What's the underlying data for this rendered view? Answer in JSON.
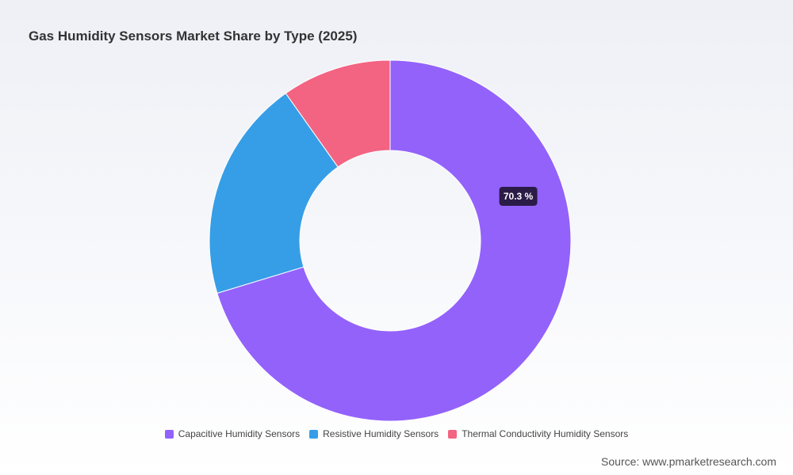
{
  "chart_data": {
    "type": "pie",
    "donut": true,
    "title": "Gas Humidity Sensors Market Share by Type (2025)",
    "categories": [
      "Capacitive Humidity Sensors",
      "Resistive Humidity Sensors",
      "Thermal Conductivity Humidity Sensors"
    ],
    "values": [
      70.3,
      19.9,
      9.8
    ],
    "colors": [
      "#9362fb",
      "#369ee7",
      "#f36382"
    ],
    "data_labels": [
      {
        "category": "Capacitive Humidity Sensors",
        "text": "70.3 %"
      }
    ],
    "legend": "bottom-center",
    "start_angle": "top",
    "direction": "clockwise"
  },
  "source": "Source: www.pmarketresearch.com"
}
